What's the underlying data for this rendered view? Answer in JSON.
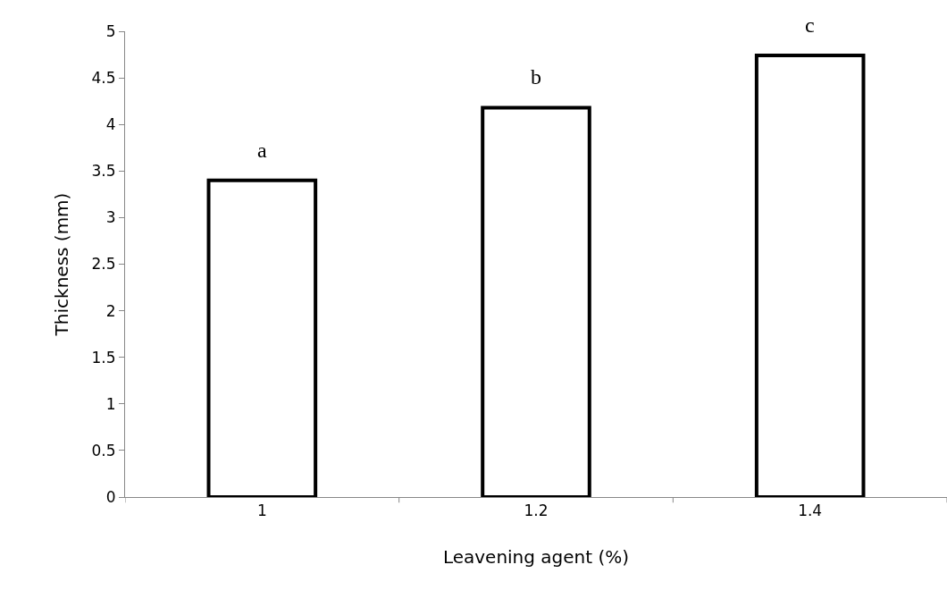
{
  "chart_data": {
    "type": "bar",
    "xlabel": "Leavening agent (%)",
    "ylabel": "Thickness (mm)",
    "categories": [
      "1",
      "1.2",
      "1.4"
    ],
    "values": [
      3.4,
      4.18,
      4.74
    ],
    "color": "#ffffff",
    "ylim": [
      0,
      5
    ],
    "yticks": [
      0,
      0.5,
      1,
      1.5,
      2,
      2.5,
      3,
      3.5,
      4,
      4.5,
      5
    ],
    "annotations": [
      {
        "text": "a",
        "x": "1",
        "y": 3.4
      },
      {
        "text": "b",
        "x": "1.2",
        "y": 4.18
      },
      {
        "text": "c",
        "x": "1.4",
        "y": 4.74
      }
    ]
  }
}
